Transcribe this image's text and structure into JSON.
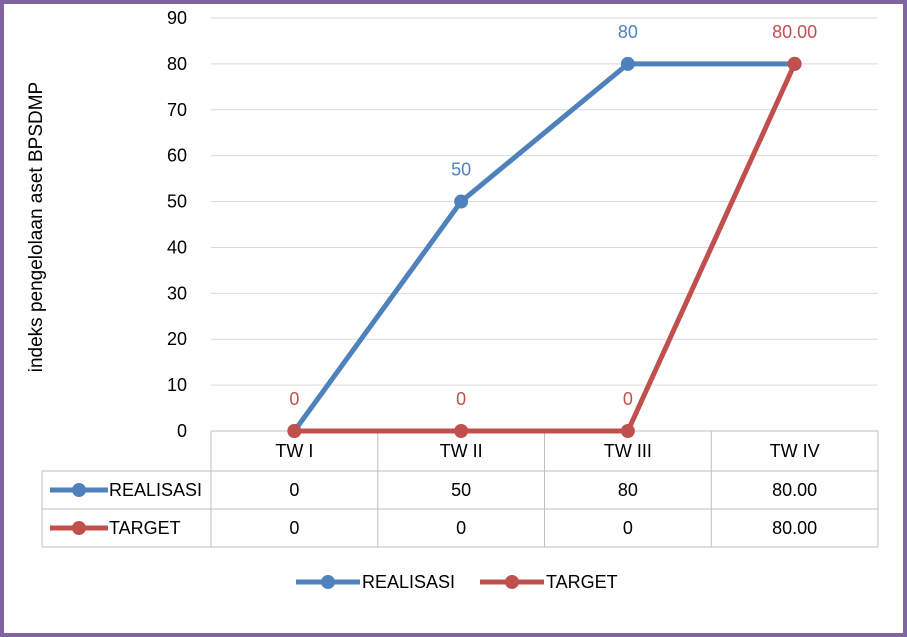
{
  "chart_data": {
    "type": "line",
    "title": "",
    "xlabel": "",
    "ylabel": "indeks pengelolaan aset BPSDMP",
    "categories": [
      "TW I",
      "TW II",
      "TW III",
      "TW IV"
    ],
    "ylim": [
      0,
      90
    ],
    "yticks": [
      0,
      10,
      20,
      30,
      40,
      50,
      60,
      70,
      80,
      90
    ],
    "grid": true,
    "legend_position": "bottom",
    "data_table": true,
    "series": [
      {
        "name": "REALISASI",
        "values": [
          0,
          50,
          80,
          80
        ],
        "labels": [
          "0",
          "50",
          "80",
          "80.00"
        ],
        "point_labels": [
          "",
          "50",
          "80",
          ""
        ],
        "color": "#4f81bd"
      },
      {
        "name": "TARGET",
        "values": [
          0,
          0,
          0,
          80
        ],
        "labels": [
          "0",
          "0",
          "0",
          "80.00"
        ],
        "point_labels": [
          "0",
          "0",
          "0",
          "80.00"
        ],
        "color": "#c0504d"
      }
    ]
  }
}
